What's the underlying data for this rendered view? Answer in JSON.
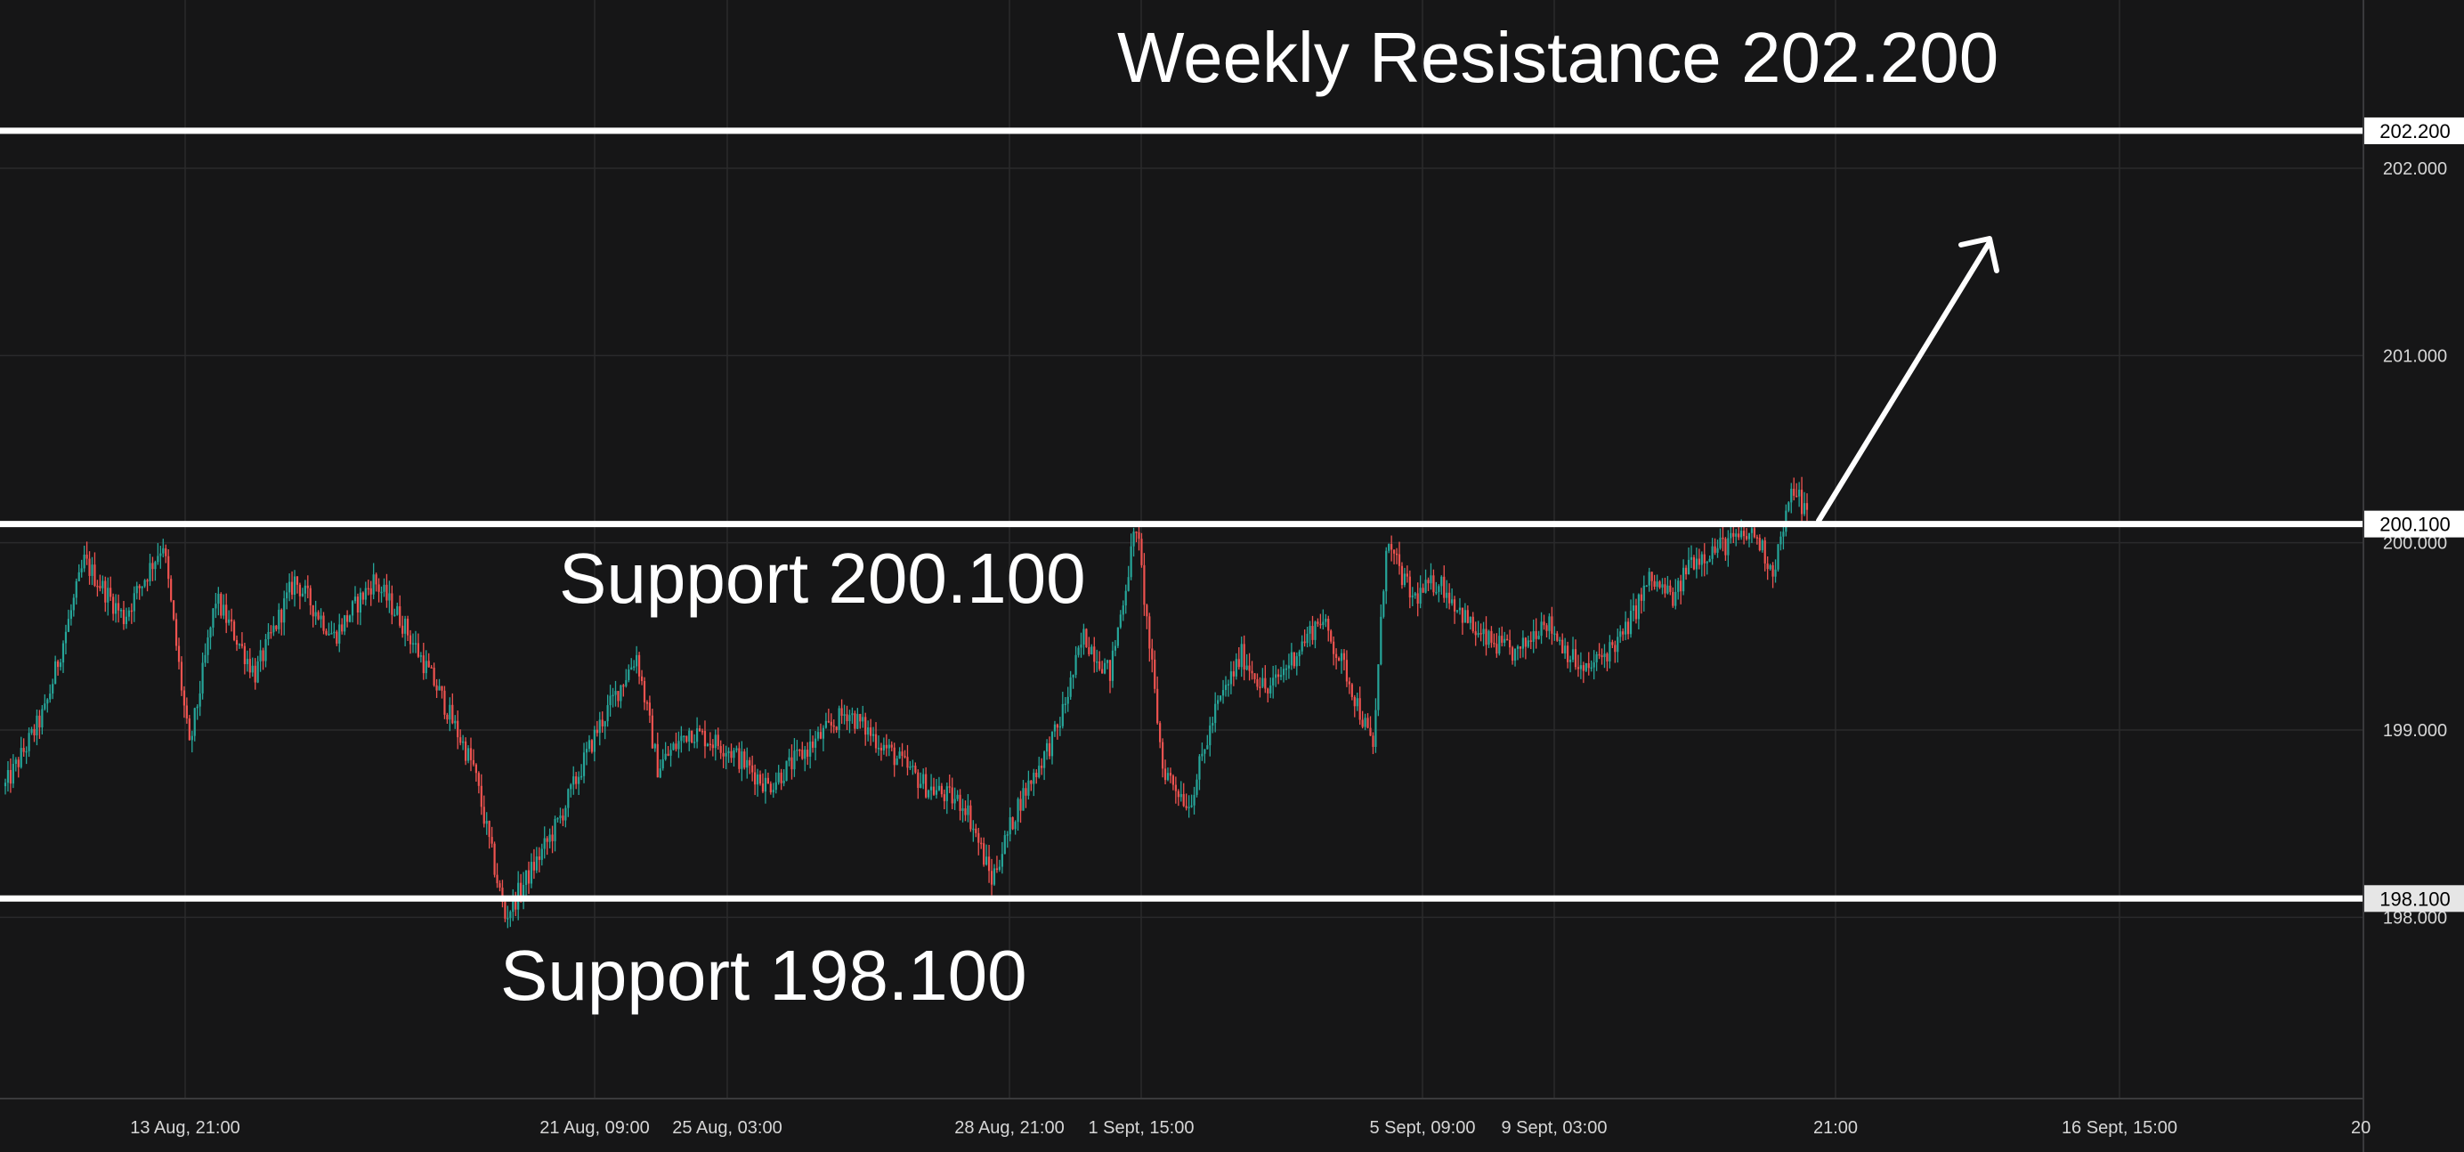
{
  "chart_data": {
    "type": "candlestick",
    "ylim": [
      197.45,
      202.7
    ],
    "grid": true,
    "y_ticks": [
      {
        "value": 202.0,
        "label": "202.000"
      },
      {
        "value": 201.0,
        "label": "201.000"
      },
      {
        "value": 200.0,
        "label": "200.000"
      },
      {
        "value": 199.0,
        "label": "199.000"
      },
      {
        "value": 198.0,
        "label": "198.000"
      }
    ],
    "x_tick_labels": [
      "13 Aug, 21:00",
      "21 Aug, 09:00",
      "25 Aug, 03:00",
      "28 Aug, 21:00",
      "1 Sept, 15:00",
      "5 Sept, 09:00",
      "9 Sept, 03:00",
      "21:00",
      "16 Sept, 15:00",
      "20"
    ],
    "levels": [
      {
        "label": "Weekly Resistance 202.200",
        "value": 202.2,
        "badge": "202.200"
      },
      {
        "label": "Support 200.100",
        "value": 200.1,
        "badge": "200.100"
      },
      {
        "label": "Support 198.100",
        "value": 198.1,
        "badge": "198.100"
      }
    ],
    "colors": {
      "up": "#26a69a",
      "down": "#ef5350",
      "level_line": "#ffffff",
      "background": "#161617",
      "grid": "#2a2a2c"
    },
    "price_path": [
      {
        "i": 0,
        "p": 198.7
      },
      {
        "i": 15,
        "p": 199.1
      },
      {
        "i": 30,
        "p": 199.9
      },
      {
        "i": 45,
        "p": 199.6
      },
      {
        "i": 60,
        "p": 200.0
      },
      {
        "i": 70,
        "p": 198.9
      },
      {
        "i": 80,
        "p": 199.7
      },
      {
        "i": 95,
        "p": 199.3
      },
      {
        "i": 110,
        "p": 199.8
      },
      {
        "i": 125,
        "p": 199.5
      },
      {
        "i": 140,
        "p": 199.8
      },
      {
        "i": 150,
        "p": 199.6
      },
      {
        "i": 165,
        "p": 199.2
      },
      {
        "i": 178,
        "p": 198.8
      },
      {
        "i": 190,
        "p": 198.0
      },
      {
        "i": 210,
        "p": 198.5
      },
      {
        "i": 225,
        "p": 199.0
      },
      {
        "i": 240,
        "p": 199.4
      },
      {
        "i": 248,
        "p": 198.8
      },
      {
        "i": 260,
        "p": 199.0
      },
      {
        "i": 275,
        "p": 198.9
      },
      {
        "i": 290,
        "p": 198.7
      },
      {
        "i": 305,
        "p": 198.9
      },
      {
        "i": 320,
        "p": 199.1
      },
      {
        "i": 335,
        "p": 198.9
      },
      {
        "i": 350,
        "p": 198.7
      },
      {
        "i": 365,
        "p": 198.6
      },
      {
        "i": 375,
        "p": 198.2
      },
      {
        "i": 385,
        "p": 198.6
      },
      {
        "i": 400,
        "p": 199.0
      },
      {
        "i": 410,
        "p": 199.5
      },
      {
        "i": 420,
        "p": 199.3
      },
      {
        "i": 430,
        "p": 200.1
      },
      {
        "i": 440,
        "p": 198.8
      },
      {
        "i": 450,
        "p": 198.6
      },
      {
        "i": 460,
        "p": 199.1
      },
      {
        "i": 470,
        "p": 199.4
      },
      {
        "i": 480,
        "p": 199.2
      },
      {
        "i": 490,
        "p": 199.4
      },
      {
        "i": 500,
        "p": 199.6
      },
      {
        "i": 510,
        "p": 199.3
      },
      {
        "i": 520,
        "p": 198.9
      },
      {
        "i": 525,
        "p": 200.0
      },
      {
        "i": 535,
        "p": 199.7
      },
      {
        "i": 545,
        "p": 199.8
      },
      {
        "i": 560,
        "p": 199.5
      },
      {
        "i": 575,
        "p": 199.4
      },
      {
        "i": 585,
        "p": 199.6
      },
      {
        "i": 600,
        "p": 199.3
      },
      {
        "i": 615,
        "p": 199.5
      },
      {
        "i": 625,
        "p": 199.8
      },
      {
        "i": 635,
        "p": 199.7
      },
      {
        "i": 640,
        "p": 199.9
      },
      {
        "i": 655,
        "p": 200.0
      },
      {
        "i": 665,
        "p": 200.05
      },
      {
        "i": 672,
        "p": 199.85
      },
      {
        "i": 680,
        "p": 200.3
      },
      {
        "i": 685,
        "p": 200.15
      }
    ]
  }
}
